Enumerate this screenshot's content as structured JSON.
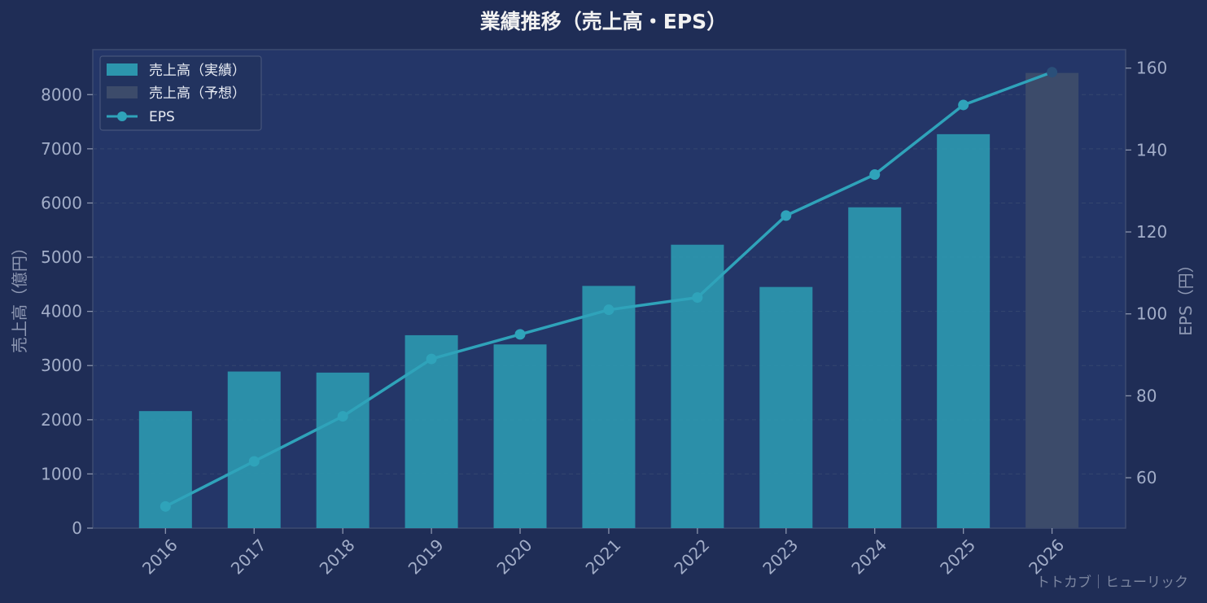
{
  "chart_data": {
    "type": "bar",
    "title": "業績推移（売上高・EPS）",
    "categories": [
      "2016",
      "2017",
      "2018",
      "2019",
      "2020",
      "2021",
      "2022",
      "2023",
      "2024",
      "2025",
      "2026"
    ],
    "series": [
      {
        "name": "売上高（実績）",
        "kind": "bar",
        "axis": "left",
        "color": "#2c95ad",
        "values": [
          2160,
          2890,
          2870,
          3560,
          3390,
          4470,
          5230,
          4450,
          5920,
          7270,
          null
        ]
      },
      {
        "name": "売上高（予想）",
        "kind": "bar",
        "axis": "left",
        "color": "#3c4b6a",
        "values": [
          null,
          null,
          null,
          null,
          null,
          null,
          null,
          null,
          null,
          null,
          8400
        ]
      },
      {
        "name": "EPS",
        "kind": "line",
        "axis": "right",
        "color": "#2fa3ba",
        "values": [
          53,
          64,
          75,
          89,
          95,
          101,
          104,
          124,
          134,
          151,
          159
        ]
      }
    ],
    "ylabel": "売上高（億円）",
    "y2label": "EPS（円）",
    "ylim": [
      0,
      8830
    ],
    "y2lim": [
      47.7,
      164.5
    ],
    "yticks": [
      0,
      1000,
      2000,
      3000,
      4000,
      5000,
      6000,
      7000,
      8000
    ],
    "y2ticks": [
      60,
      80,
      100,
      120,
      140,
      160
    ],
    "grid": true,
    "legend_position": "top-left"
  },
  "watermark": "トトカブ｜ヒューリック",
  "colors": {
    "background": "#1f2d56",
    "plot_background": "#243668",
    "actual_bar": "#2c95ad",
    "forecast_bar": "#3c4b6a",
    "eps_line": "#2fa3ba"
  }
}
